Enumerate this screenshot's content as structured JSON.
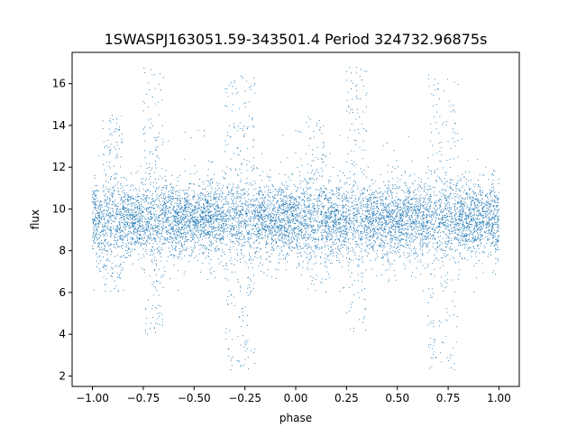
{
  "chart_data": {
    "type": "scatter",
    "title": "1SWASPJ163051.59-343501.4 Period 324732.96875s",
    "xlabel": "phase",
    "ylabel": "flux",
    "xlim": [
      -1.1,
      1.1
    ],
    "ylim": [
      1.5,
      17.5
    ],
    "xticks": [
      -1.0,
      -0.75,
      -0.5,
      -0.25,
      0.0,
      0.25,
      0.5,
      0.75,
      1.0
    ],
    "xtick_labels": [
      "−1.00",
      "−0.75",
      "−0.50",
      "−0.25",
      "0.00",
      "0.25",
      "0.50",
      "0.75",
      "1.00"
    ],
    "yticks": [
      2,
      4,
      6,
      8,
      10,
      12,
      14,
      16
    ],
    "ytick_labels": [
      "2",
      "4",
      "6",
      "8",
      "10",
      "12",
      "14",
      "16"
    ],
    "grid": false,
    "marker_color": "#1f77b4",
    "series": [
      {
        "description": "phase-folded light curve, pattern repeats with period 1 in phase",
        "baseline_flux": 9.5,
        "scatter_sd": 0.9,
        "x_range": [
          -1.0,
          1.0
        ],
        "features": [
          {
            "phase": [
              -0.95,
              -0.85
            ],
            "flux_range": [
              6.0,
              14.5
            ]
          },
          {
            "phase": [
              -0.75,
              -0.65
            ],
            "flux_range": [
              4.0,
              16.8
            ]
          },
          {
            "phase": [
              -0.35,
              -0.2
            ],
            "flux_range": [
              2.2,
              16.5
            ]
          },
          {
            "phase": [
              0.05,
              0.15
            ],
            "flux_range": [
              6.0,
              14.5
            ]
          },
          {
            "phase": [
              0.25,
              0.35
            ],
            "flux_range": [
              4.0,
              16.8
            ]
          },
          {
            "phase": [
              0.65,
              0.8
            ],
            "flux_range": [
              2.2,
              16.5
            ]
          }
        ]
      }
    ]
  }
}
